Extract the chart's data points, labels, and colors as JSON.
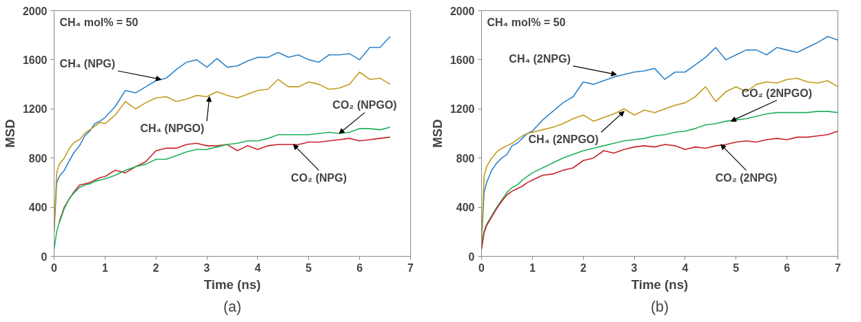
{
  "chart_data": [
    {
      "type": "line",
      "title": "(a)",
      "xlabel": "Time (ns)",
      "ylabel": "MSD",
      "xlim": [
        0,
        7
      ],
      "ylim": [
        0,
        2000
      ],
      "xticks": [
        0,
        1,
        2,
        3,
        4,
        5,
        6,
        7
      ],
      "yticks": [
        0,
        400,
        800,
        1200,
        1600,
        2000
      ],
      "grid": false,
      "x": [
        0,
        0.05,
        0.1,
        0.2,
        0.3,
        0.4,
        0.5,
        0.6,
        0.7,
        0.8,
        0.9,
        1.0,
        1.2,
        1.4,
        1.6,
        1.8,
        2.0,
        2.2,
        2.4,
        2.6,
        2.8,
        3.0,
        3.2,
        3.4,
        3.6,
        3.8,
        4.0,
        4.2,
        4.4,
        4.6,
        4.8,
        5.0,
        5.2,
        5.4,
        5.6,
        5.8,
        6.0,
        6.2,
        6.4,
        6.6
      ],
      "series": [
        {
          "color": "#2e83c8",
          "values": [
            200,
            600,
            650,
            700,
            780,
            850,
            900,
            980,
            1020,
            1080,
            1100,
            1130,
            1220,
            1350,
            1330,
            1380,
            1430,
            1450,
            1520,
            1580,
            1600,
            1540,
            1610,
            1540,
            1550,
            1590,
            1620,
            1620,
            1660,
            1620,
            1640,
            1600,
            1580,
            1640,
            1640,
            1650,
            1600,
            1700,
            1700,
            1790
          ]
        },
        {
          "color": "#c39a1e",
          "values": [
            220,
            680,
            750,
            800,
            880,
            930,
            950,
            1000,
            1030,
            1060,
            1090,
            1080,
            1150,
            1260,
            1200,
            1250,
            1290,
            1300,
            1260,
            1280,
            1310,
            1300,
            1340,
            1310,
            1290,
            1320,
            1350,
            1360,
            1440,
            1380,
            1380,
            1420,
            1400,
            1360,
            1370,
            1400,
            1500,
            1440,
            1450,
            1400
          ]
        },
        {
          "color": "#c8202a",
          "values": [
            null,
            null,
            280,
            400,
            470,
            530,
            580,
            590,
            600,
            620,
            640,
            650,
            700,
            680,
            730,
            770,
            860,
            880,
            880,
            910,
            920,
            900,
            900,
            910,
            860,
            900,
            870,
            900,
            910,
            910,
            910,
            930,
            930,
            940,
            950,
            960,
            940,
            950,
            960,
            970
          ]
        },
        {
          "color": "#1fb15a",
          "values": [
            60,
            200,
            270,
            390,
            470,
            520,
            560,
            580,
            590,
            610,
            620,
            630,
            660,
            700,
            730,
            750,
            790,
            790,
            820,
            850,
            870,
            870,
            890,
            910,
            920,
            940,
            940,
            960,
            990,
            990,
            990,
            990,
            1000,
            1010,
            1000,
            1010,
            1040,
            1040,
            1030,
            1050
          ]
        }
      ],
      "annotations": [
        "CH₄ mol% = 50",
        {
          "text": "CH₄ (NPG)",
          "x": 2.1,
          "y": 1440
        },
        {
          "text": "CH₄ (NPGO)",
          "x": 3.05,
          "y": 1300
        },
        {
          "text": "CO₂ (NPGO)",
          "x": 5.6,
          "y": 1000
        },
        {
          "text": "CO₂ (NPG)",
          "x": 4.7,
          "y": 910
        }
      ]
    },
    {
      "type": "line",
      "title": "(b)",
      "xlabel": "Time (ns)",
      "ylabel": "MSD",
      "xlim": [
        0,
        7
      ],
      "ylim": [
        0,
        2000
      ],
      "xticks": [
        0,
        1,
        2,
        3,
        4,
        5,
        6,
        7
      ],
      "yticks": [
        0,
        400,
        800,
        1200,
        1600,
        2000
      ],
      "grid": false,
      "x": [
        0,
        0.05,
        0.1,
        0.2,
        0.3,
        0.4,
        0.5,
        0.6,
        0.7,
        0.8,
        0.9,
        1.0,
        1.2,
        1.4,
        1.6,
        1.8,
        2.0,
        2.2,
        2.4,
        2.6,
        2.8,
        3.0,
        3.2,
        3.4,
        3.6,
        3.8,
        4.0,
        4.2,
        4.4,
        4.6,
        4.8,
        5.0,
        5.2,
        5.4,
        5.6,
        5.8,
        6.0,
        6.2,
        6.4,
        6.6,
        6.8,
        7.0
      ],
      "series": [
        {
          "color": "#2e83c8",
          "values": [
            100,
            520,
            600,
            700,
            760,
            800,
            830,
            900,
            920,
            960,
            1000,
            1020,
            1110,
            1180,
            1250,
            1300,
            1420,
            1400,
            1430,
            1460,
            1480,
            1500,
            1510,
            1530,
            1440,
            1500,
            1500,
            1560,
            1620,
            1700,
            1600,
            1640,
            1680,
            1680,
            1640,
            1700,
            1680,
            1660,
            1700,
            1740,
            1790,
            1760
          ]
        },
        {
          "color": "#c39a1e",
          "values": [
            100,
            650,
            730,
            800,
            850,
            880,
            900,
            920,
            950,
            980,
            1000,
            1010,
            1030,
            1050,
            1080,
            1120,
            1150,
            1100,
            1130,
            1160,
            1200,
            1150,
            1190,
            1170,
            1200,
            1230,
            1250,
            1300,
            1380,
            1260,
            1340,
            1380,
            1340,
            1400,
            1420,
            1410,
            1440,
            1450,
            1420,
            1410,
            1430,
            1380
          ]
        },
        {
          "color": "#1fb15a",
          "values": [
            60,
            200,
            260,
            330,
            400,
            460,
            520,
            560,
            580,
            620,
            650,
            680,
            720,
            760,
            800,
            830,
            860,
            880,
            900,
            920,
            940,
            950,
            960,
            980,
            990,
            1010,
            1020,
            1040,
            1070,
            1080,
            1100,
            1110,
            1120,
            1140,
            1160,
            1170,
            1170,
            1170,
            1170,
            1180,
            1180,
            1170
          ]
        },
        {
          "color": "#c8202a",
          "values": [
            60,
            190,
            250,
            320,
            390,
            450,
            500,
            530,
            550,
            570,
            600,
            620,
            660,
            670,
            700,
            720,
            780,
            800,
            860,
            840,
            870,
            890,
            900,
            890,
            910,
            900,
            870,
            890,
            880,
            900,
            910,
            930,
            940,
            930,
            950,
            960,
            950,
            970,
            970,
            980,
            990,
            1020
          ]
        }
      ],
      "annotations": [
        "CH₄ mol% = 50",
        {
          "text": "CH₄ (2NPG)",
          "x": 2.65,
          "y": 1480
        },
        {
          "text": "CH₄ (2NPGO)",
          "x": 2.8,
          "y": 1180
        },
        {
          "text": "CO₂ (2NPGO)",
          "x": 4.9,
          "y": 1100
        },
        {
          "text": "CO₂ (2NPG)",
          "x": 4.7,
          "y": 910
        }
      ]
    }
  ]
}
